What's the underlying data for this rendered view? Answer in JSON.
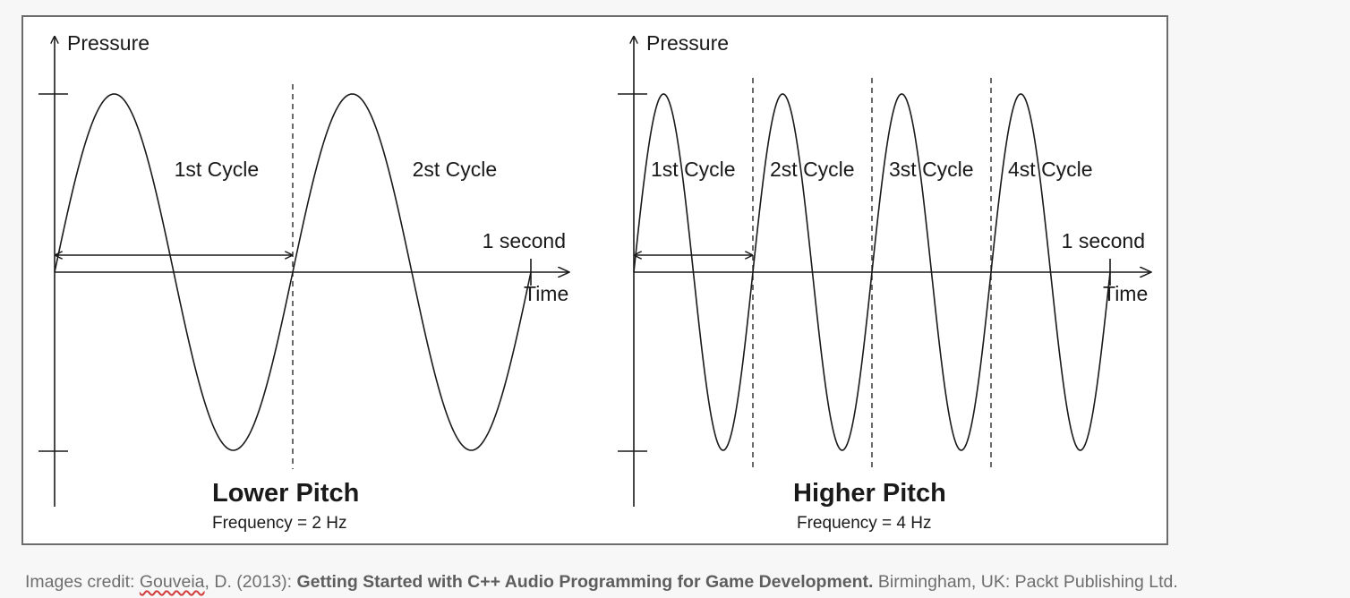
{
  "panels": [
    {
      "y_axis_label": "Pressure",
      "x_axis_label": "Time",
      "cycle_labels": [
        "1st Cycle",
        "2st Cycle"
      ],
      "duration_label": "1 second",
      "title": "Lower Pitch",
      "frequency_label": "Frequency = 2 Hz",
      "cycles": 2
    },
    {
      "y_axis_label": "Pressure",
      "x_axis_label": "Time",
      "cycle_labels": [
        "1st Cycle",
        "2st Cycle",
        "3st Cycle",
        "4st Cycle"
      ],
      "duration_label": "1 second",
      "title": "Higher Pitch",
      "frequency_label": "Frequency = 4 Hz",
      "cycles": 4
    }
  ],
  "credit": {
    "prefix": "Images credit: ",
    "author": "Gouveia",
    "middle": ", D. (2013): ",
    "book_title": "Getting Started with C++ Audio Programming for Game Development.",
    "suffix": " Birmingham, UK: Packt Publishing Ltd."
  },
  "colors": {
    "ink": "#1a1a1a",
    "frame": "#6b6b6b",
    "credit_text": "#6e6e6e"
  }
}
